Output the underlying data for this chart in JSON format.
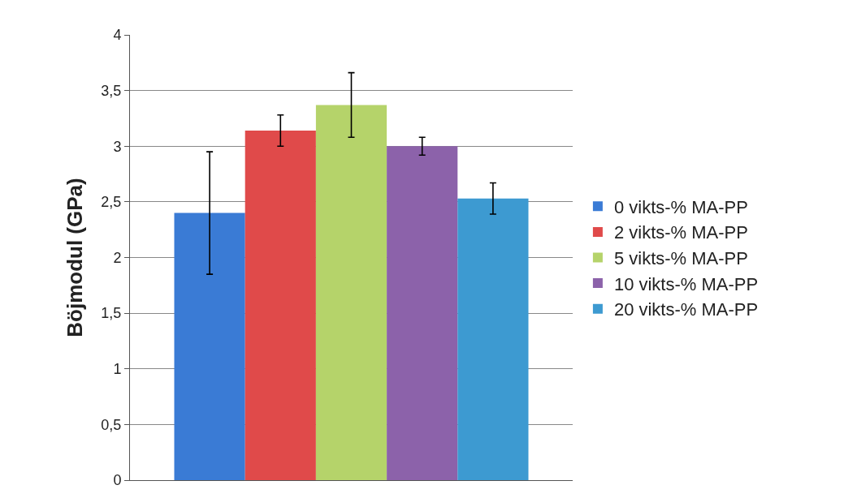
{
  "chart_data": {
    "type": "bar",
    "ylabel": "Böjmodul (GPa)",
    "categories": [
      null
    ],
    "series": [
      {
        "name": "0 vikts-% MA-PP",
        "color": "#3a7bd5",
        "values": [
          2.4
        ],
        "errors": [
          0.55
        ]
      },
      {
        "name": "2 vikts-% MA-PP",
        "color": "#e04a4a",
        "values": [
          3.14
        ],
        "errors": [
          0.14
        ]
      },
      {
        "name": "5 vikts-% MA-PP",
        "color": "#b5d36a",
        "values": [
          3.37
        ],
        "errors": [
          0.29
        ]
      },
      {
        "name": "10 vikts-% MA-PP",
        "color": "#8c62aa",
        "values": [
          3.0
        ],
        "errors": [
          0.08
        ]
      },
      {
        "name": "20 vikts-% MA-PP",
        "color": "#3d9ad1",
        "values": [
          2.53
        ],
        "errors": [
          0.14
        ]
      }
    ],
    "ylim": [
      0,
      4
    ],
    "yticks": [
      0,
      {
        "value": 0.5,
        "label": "0,5"
      },
      1,
      {
        "value": 1.5,
        "label": "1,5"
      },
      2,
      {
        "value": 2.5,
        "label": "2,5"
      },
      3,
      {
        "value": 3.5,
        "label": "3,5"
      },
      4
    ],
    "grid": "y",
    "legend": "right"
  }
}
